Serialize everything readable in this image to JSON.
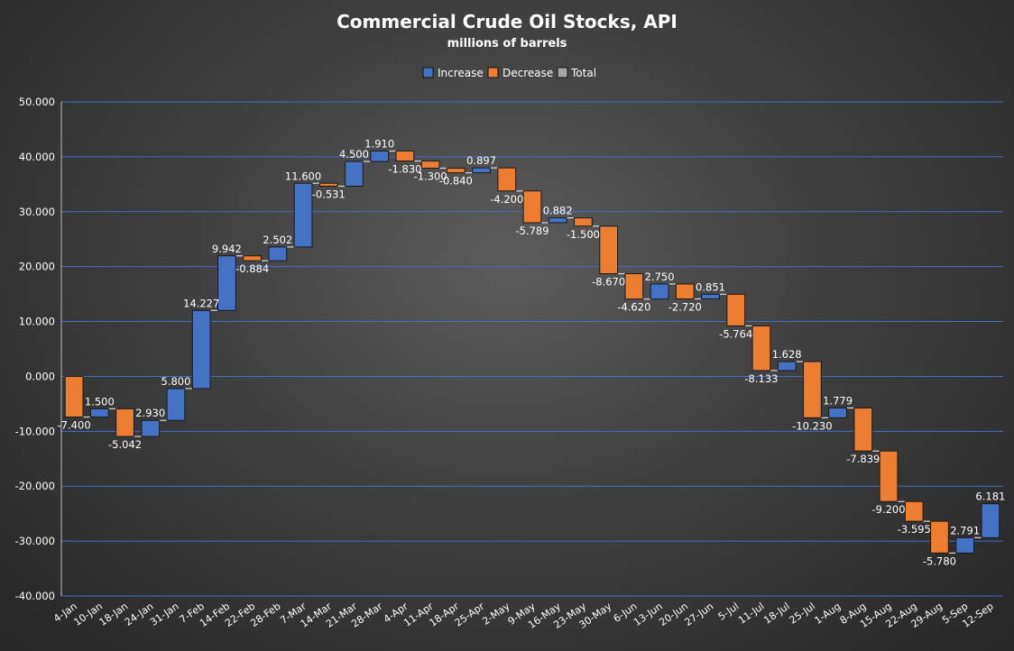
{
  "chart_data": {
    "type": "bar",
    "subtype": "waterfall",
    "title": "Commercial Crude Oil Stocks, API",
    "subtitle": "millions of barrels",
    "legend": [
      "Increase",
      "Decrease",
      "Total"
    ],
    "legend_position": "top",
    "ylim": [
      -40,
      50
    ],
    "yticks": [
      "50.000",
      "40.000",
      "30.000",
      "20.000",
      "10.000",
      "0.000",
      "-10.000",
      "-20.000",
      "-30.000",
      "-40.000"
    ],
    "grid": true,
    "categories": [
      "4-Jan",
      "10-Jan",
      "18-Jan",
      "24-Jan",
      "31-Jan",
      "7-Feb",
      "14-Feb",
      "22-Feb",
      "28-Feb",
      "7-Mar",
      "14-Mar",
      "21-Mar",
      "28-Mar",
      "4-Apr",
      "11-Apr",
      "18-Apr",
      "25-Apr",
      "2-May",
      "9-May",
      "16-May",
      "23-May",
      "30-May",
      "6-Jun",
      "13-Jun",
      "20-Jun",
      "27-Jun",
      "5-Jul",
      "11-Jul",
      "18-Jul",
      "25-Jul",
      "1-Aug",
      "8-Aug",
      "15-Aug",
      "22-Aug",
      "29-Aug",
      "5-Sep",
      "12-Sep"
    ],
    "values": [
      -7.4,
      1.5,
      -5.042,
      2.93,
      5.8,
      14.227,
      9.942,
      -0.884,
      2.502,
      11.6,
      -0.531,
      4.5,
      1.91,
      -1.83,
      -1.3,
      -0.84,
      0.897,
      -4.2,
      -5.789,
      0.882,
      -1.5,
      -8.67,
      -4.62,
      2.75,
      -2.72,
      0.851,
      -5.764,
      -8.133,
      1.628,
      -10.23,
      1.779,
      -7.839,
      -9.2,
      -3.595,
      -5.78,
      2.791,
      6.181
    ],
    "value_labels": [
      "-7.400",
      "1.500",
      "-5.042",
      "2.930",
      "5.800",
      "14.227",
      "9.942",
      "-0.884",
      "2.502",
      "11.600",
      "-0.531",
      "4.500",
      "1.910",
      "-1.830",
      "-1.300",
      "-0.840",
      "0.897",
      "-4.200",
      "-5.789",
      "0.882",
      "-1.500",
      "-8.670",
      "-4.620",
      "2.750",
      "-2.720",
      "0.851",
      "-5.764",
      "-8.133",
      "1.628",
      "-10.230",
      "1.779",
      "-7.839",
      "-9.200",
      "-3.595",
      "-5.780",
      "2.791",
      "6.181"
    ],
    "colors": {
      "increase": "#4472c4",
      "decrease": "#ed7d31",
      "total": "#a5a5a5",
      "grid": "#3f6fc6"
    }
  }
}
